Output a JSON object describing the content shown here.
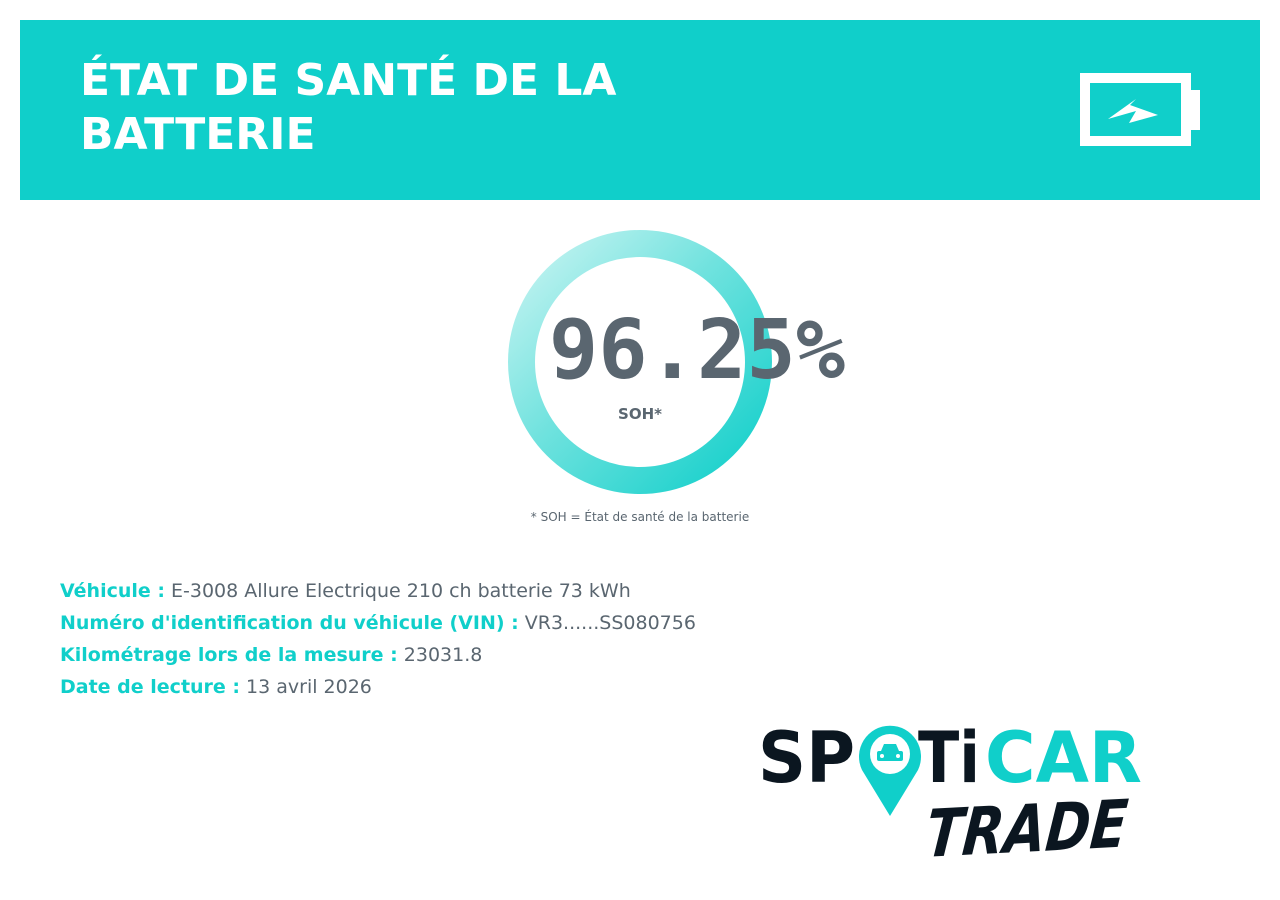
{
  "header": {
    "title": "ÉTAT DE SANTÉ DE LA BATTERIE"
  },
  "gauge": {
    "value": "96.25%",
    "label": "SOH*",
    "footnote": "* SOH = État de santé de la batterie"
  },
  "details": [
    {
      "label": "Véhicule :",
      "value": "E-3008 Allure Electrique 210 ch batterie 73 kWh"
    },
    {
      "label": "Numéro d'identification du véhicule (VIN) :",
      "value": "VR3......SS080756"
    },
    {
      "label": "Kilométrage lors de la mesure :",
      "value": "23031.8"
    },
    {
      "label": "Date de lecture :",
      "value": "13 avril 2026"
    }
  ],
  "logo": {
    "parts": [
      "SP",
      "Ti",
      "CAR"
    ],
    "line2": "TRADE"
  }
}
